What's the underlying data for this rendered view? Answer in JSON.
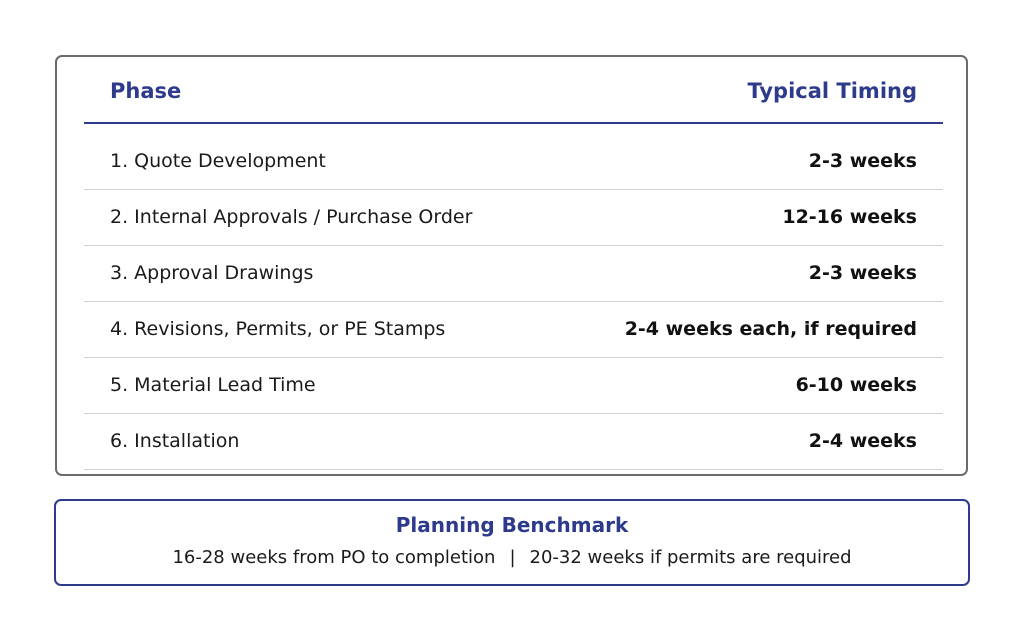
{
  "table": {
    "header": {
      "phase": "Phase",
      "timing": "Typical Timing"
    },
    "rows": [
      {
        "phase": "1. Quote Development",
        "timing": "2-3 weeks"
      },
      {
        "phase": "2. Internal Approvals / Purchase Order",
        "timing": "12-16 weeks"
      },
      {
        "phase": "3. Approval Drawings",
        "timing": "2-3 weeks"
      },
      {
        "phase": "4. Revisions, Permits, or PE Stamps",
        "timing": "2-4 weeks each, if required"
      },
      {
        "phase": "5. Material Lead Time",
        "timing": "6-10 weeks"
      },
      {
        "phase": "6. Installation",
        "timing": "2-4 weeks"
      }
    ]
  },
  "benchmark": {
    "title": "Planning Benchmark",
    "standard": "16-28 weeks from PO to completion",
    "separator": "|",
    "with_permits": "20-32 weeks if permits are required"
  },
  "colors": {
    "accent": "#2e3a8c",
    "table_border": "#6b6b6b",
    "row_divider": "#cfcfcf"
  }
}
